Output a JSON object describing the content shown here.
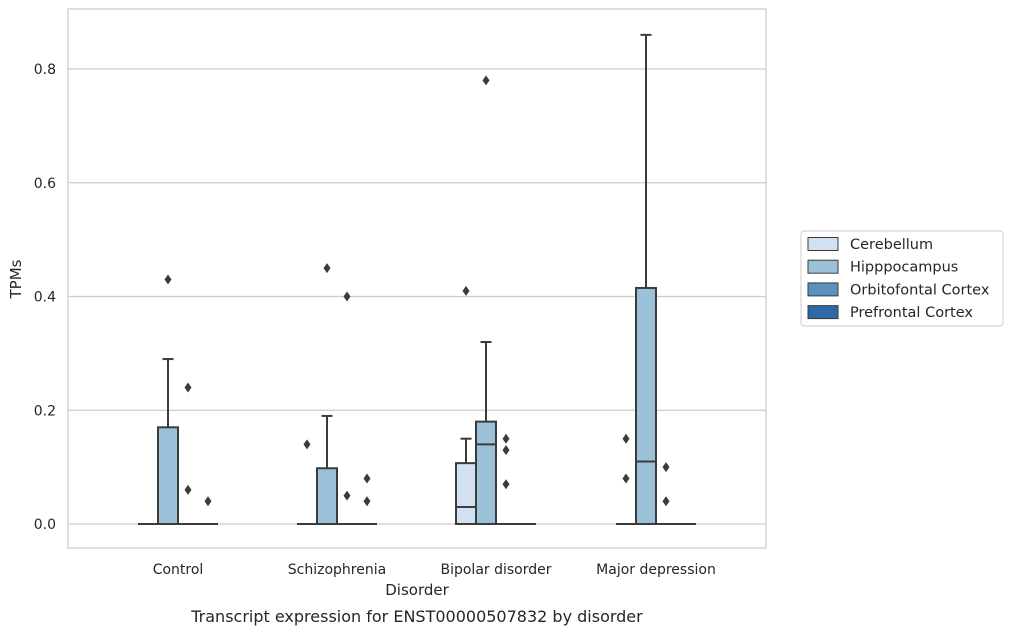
{
  "chart_data": {
    "type": "box",
    "xlabel": "Disorder",
    "ylabel": "TPMs",
    "caption": "Transcript expression for ENST00000507832 by disorder",
    "ylim": [
      -0.042,
      0.91
    ],
    "yticks": [
      0.0,
      0.2,
      0.4,
      0.6,
      0.8
    ],
    "ytick_labels": [
      "0.0",
      "0.2",
      "0.4",
      "0.6",
      "0.8"
    ],
    "grid": "horizontal",
    "legend_position": "right",
    "categories": [
      "Control",
      "Schizophrenia",
      "Bipolar disorder",
      "Major depression"
    ],
    "series": [
      {
        "name": "Cerebellum",
        "color": "#d1e1ef",
        "boxes": [
          {
            "q1": 0,
            "median": 0,
            "q3": 0,
            "whisker_low": 0,
            "whisker_high": 0,
            "outliers": []
          },
          {
            "q1": 0,
            "median": 0,
            "q3": 0,
            "whisker_low": 0,
            "whisker_high": 0,
            "outliers": [
              0.14
            ]
          },
          {
            "q1": 0,
            "median": 0.03,
            "q3": 0.107,
            "whisker_low": 0,
            "whisker_high": 0.15,
            "outliers": [
              0.41
            ]
          },
          {
            "q1": 0,
            "median": 0,
            "q3": 0,
            "whisker_low": 0,
            "whisker_high": 0,
            "outliers": [
              0.15,
              0.08
            ]
          }
        ]
      },
      {
        "name": "Hipppocampus",
        "color": "#9bc2d9",
        "boxes": [
          {
            "q1": 0,
            "median": 0,
            "q3": 0.17,
            "whisker_low": 0,
            "whisker_high": 0.29,
            "outliers": [
              0.43
            ]
          },
          {
            "q1": 0,
            "median": 0,
            "q3": 0.098,
            "whisker_low": 0,
            "whisker_high": 0.19,
            "outliers": [
              0.45
            ]
          },
          {
            "q1": 0,
            "median": 0.14,
            "q3": 0.18,
            "whisker_low": 0,
            "whisker_high": 0.32,
            "outliers": [
              0.78
            ]
          },
          {
            "q1": 0,
            "median": 0.11,
            "q3": 0.415,
            "whisker_low": 0,
            "whisker_high": 0.86,
            "outliers": []
          }
        ]
      },
      {
        "name": "Orbitofontal Cortex",
        "color": "#5b91bf",
        "boxes": [
          {
            "q1": 0,
            "median": 0,
            "q3": 0,
            "whisker_low": 0,
            "whisker_high": 0,
            "outliers": [
              0.24,
              0.06
            ]
          },
          {
            "q1": 0,
            "median": 0,
            "q3": 0,
            "whisker_low": 0,
            "whisker_high": 0,
            "outliers": [
              0.4,
              0.05
            ]
          },
          {
            "q1": 0,
            "median": 0,
            "q3": 0,
            "whisker_low": 0,
            "whisker_high": 0,
            "outliers": [
              0.15,
              0.13,
              0.07
            ]
          },
          {
            "q1": 0,
            "median": 0,
            "q3": 0,
            "whisker_low": 0,
            "whisker_high": 0,
            "outliers": [
              0.1,
              0.04
            ]
          }
        ]
      },
      {
        "name": "Prefrontal Cortex",
        "color": "#2c6aa6",
        "boxes": [
          {
            "q1": 0,
            "median": 0,
            "q3": 0,
            "whisker_low": 0,
            "whisker_high": 0,
            "outliers": [
              0.04
            ]
          },
          {
            "q1": 0,
            "median": 0,
            "q3": 0,
            "whisker_low": 0,
            "whisker_high": 0,
            "outliers": [
              0.08,
              0.04
            ]
          },
          {
            "q1": 0,
            "median": 0,
            "q3": 0,
            "whisker_low": 0,
            "whisker_high": 0,
            "outliers": []
          },
          {
            "q1": 0,
            "median": 0,
            "q3": 0,
            "whisker_low": 0,
            "whisker_high": 0,
            "outliers": []
          }
        ]
      }
    ]
  }
}
